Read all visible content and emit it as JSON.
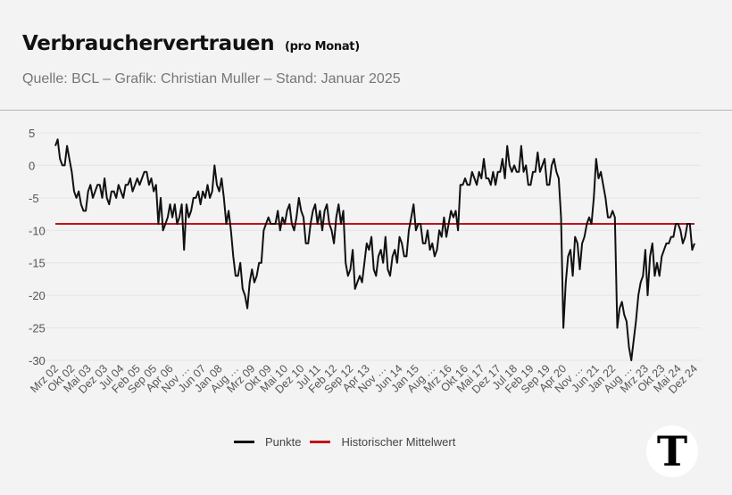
{
  "header": {
    "title": "Verbrauchervertrauen",
    "title_suffix": "(pro Monat)",
    "subtitle": "Quelle: BCL – Grafik: Christian Muller – Stand: Januar 2025"
  },
  "logo": "T",
  "chart_data": {
    "type": "line",
    "title": "Verbrauchervertrauen",
    "xlabel": "",
    "ylabel": "",
    "ylim": [
      -30,
      5
    ],
    "yticks": [
      5,
      0,
      -5,
      -10,
      -15,
      -20,
      -25,
      -30
    ],
    "x_start": "Mrz 02",
    "x_end": "Dez 24",
    "frequency": "monthly",
    "xtick_labels": [
      "Mrz 02",
      "Okt 02",
      "Mai 03",
      "Dez 03",
      "Jul 04",
      "Feb 05",
      "Sep 05",
      "Apr 06",
      "Nov …",
      "Jun 07",
      "Jan 08",
      "Aug …",
      "Mrz 09",
      "Okt 09",
      "Mai 10",
      "Dez 10",
      "Jul 11",
      "Feb 12",
      "Sep 12",
      "Apr 13",
      "Nov …",
      "Jun 14",
      "Jan 15",
      "Aug …",
      "Mrz 16",
      "Okt 16",
      "Mai 17",
      "Dez 17",
      "Jul 18",
      "Feb 19",
      "Sep 19",
      "Apr 20",
      "Nov …",
      "Jun 21",
      "Jan 22",
      "Aug …",
      "Mrz 23",
      "Okt 23",
      "Mai 24",
      "Dez 24"
    ],
    "grid": true,
    "legend_position": "bottom",
    "colors": {
      "series": "#111111",
      "mean": "#c0141b"
    },
    "series": [
      {
        "name": "Punkte",
        "values": [
          3,
          4,
          1,
          0,
          0,
          3,
          1,
          -1,
          -4,
          -5,
          -4,
          -6,
          -7,
          -7,
          -4,
          -3,
          -5,
          -4,
          -3,
          -3,
          -5,
          -2,
          -5,
          -6,
          -4,
          -4,
          -5,
          -3,
          -4,
          -5,
          -3,
          -3,
          -2,
          -4,
          -3,
          -2,
          -3,
          -2,
          -1,
          -1,
          -3,
          -2,
          -4,
          -3,
          -9,
          -5,
          -10,
          -9,
          -8,
          -6,
          -8,
          -6,
          -9,
          -8,
          -6,
          -13,
          -6,
          -8,
          -7,
          -5,
          -5,
          -4,
          -6,
          -4,
          -5,
          -3,
          -5,
          -4,
          0,
          -3,
          -4,
          -2,
          -5,
          -9,
          -7,
          -10,
          -14,
          -17,
          -17,
          -15,
          -19,
          -20,
          -22,
          -18,
          -16,
          -18,
          -17,
          -15,
          -15,
          -10,
          -9,
          -8,
          -9,
          -9,
          -9,
          -7,
          -10,
          -8,
          -9,
          -7,
          -6,
          -9,
          -10,
          -8,
          -5,
          -7,
          -8,
          -12,
          -12,
          -9,
          -7,
          -6,
          -9,
          -7,
          -10,
          -7,
          -6,
          -9,
          -10,
          -12,
          -8,
          -6,
          -9,
          -7,
          -15,
          -17,
          -16,
          -13,
          -19,
          -18,
          -17,
          -18,
          -15,
          -12,
          -13,
          -11,
          -16,
          -17,
          -14,
          -13,
          -15,
          -11,
          -16,
          -17,
          -14,
          -13,
          -15,
          -11,
          -12,
          -14,
          -14,
          -10,
          -8,
          -6,
          -10,
          -9,
          -9,
          -12,
          -12,
          -10,
          -13,
          -12,
          -14,
          -13,
          -10,
          -11,
          -8,
          -11,
          -9,
          -7,
          -8,
          -7,
          -10,
          -3,
          -3,
          -2,
          -3,
          -3,
          -1,
          -2,
          -3,
          -1,
          -2,
          1,
          -2,
          -2,
          -3,
          -1,
          -3,
          -1,
          -1,
          1,
          -2,
          3,
          0,
          -1,
          0,
          -1,
          -1,
          3,
          -1,
          0,
          -3,
          -3,
          -1,
          -1,
          2,
          -1,
          0,
          1,
          -3,
          -3,
          0,
          1,
          -1,
          -2,
          -8,
          -25,
          -18,
          -14,
          -13,
          -17,
          -11,
          -12,
          -16,
          -12,
          -11,
          -9,
          -8,
          -9,
          -5,
          1,
          -2,
          -1,
          -3,
          -5,
          -8,
          -8,
          -7,
          -8,
          -25,
          -22,
          -21,
          -23,
          -24,
          -28,
          -30,
          -27,
          -24,
          -20,
          -18,
          -17,
          -13,
          -20,
          -14,
          -12,
          -17,
          -15,
          -17,
          -14,
          -13,
          -12,
          -12,
          -11,
          -11,
          -9,
          -9,
          -10,
          -12,
          -11,
          -9,
          -9,
          -13,
          -12
        ]
      },
      {
        "name": "Historischer Mittelwert",
        "value": -9
      }
    ]
  }
}
